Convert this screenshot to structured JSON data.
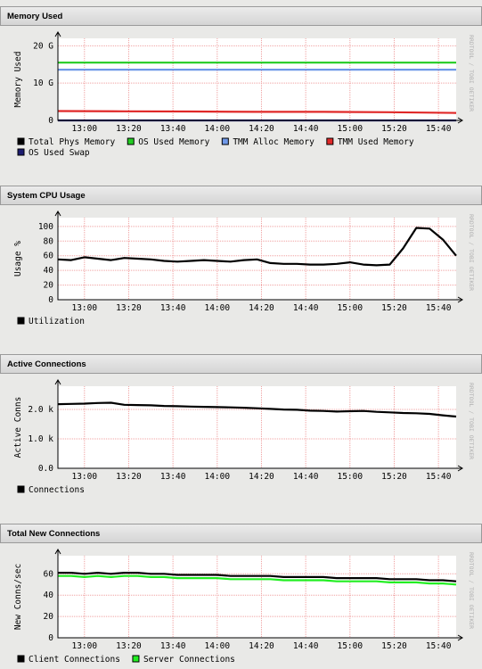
{
  "chart_data": [
    {
      "type": "line",
      "title": "Memory Used",
      "ylabel": "Memory Used",
      "watermark": "RRDTOOL / TOBI OETIKER",
      "x": [
        "12:48",
        "13:18",
        "13:48",
        "14:18",
        "14:48",
        "15:18",
        "15:48"
      ],
      "xlim": [
        "12:48",
        "15:48"
      ],
      "xticks": [
        "13:00",
        "13:20",
        "13:40",
        "14:00",
        "14:20",
        "14:40",
        "15:00",
        "15:20",
        "15:40"
      ],
      "ylim": [
        0,
        22000000000
      ],
      "yticks": [
        0,
        {
          "value": 10000000000,
          "label": "10 G"
        },
        {
          "value": 20000000000,
          "label": "20 G"
        }
      ],
      "grid": true,
      "series": [
        {
          "name": "Total Phys Memory",
          "color": "#000000",
          "values": [
            null,
            null,
            null,
            null,
            null,
            null,
            null
          ]
        },
        {
          "name": "OS Used Memory",
          "color": "#22cc22",
          "values": [
            15500000000,
            15500000000,
            15500000000,
            15500000000,
            15500000000,
            15500000000,
            15500000000
          ]
        },
        {
          "name": "TMM Alloc Memory",
          "color": "#6f98e8",
          "values": [
            13600000000,
            13600000000,
            13600000000,
            13600000000,
            13600000000,
            13600000000,
            13600000000
          ]
        },
        {
          "name": "TMM Used Memory",
          "color": "#e02828",
          "values": [
            2500000000,
            2450000000,
            2400000000,
            2300000000,
            2300000000,
            2200000000,
            2000000000
          ]
        },
        {
          "name": "OS Used Swap",
          "color": "#1c1c70",
          "values": [
            0,
            0,
            0,
            0,
            0,
            0,
            0
          ]
        }
      ]
    },
    {
      "type": "line",
      "title": "System CPU Usage",
      "ylabel": "Usage %",
      "watermark": "RRDTOOL / TOBI OETIKER",
      "x": [
        "12:48",
        "12:54",
        "13:00",
        "13:06",
        "13:12",
        "13:18",
        "13:24",
        "13:30",
        "13:36",
        "13:42",
        "13:48",
        "13:54",
        "14:00",
        "14:06",
        "14:12",
        "14:18",
        "14:24",
        "14:30",
        "14:36",
        "14:42",
        "14:48",
        "14:54",
        "15:00",
        "15:06",
        "15:12",
        "15:18",
        "15:24",
        "15:30",
        "15:36",
        "15:42",
        "15:48"
      ],
      "xlim": [
        "12:48",
        "15:48"
      ],
      "xticks": [
        "13:00",
        "13:20",
        "13:40",
        "14:00",
        "14:20",
        "14:40",
        "15:00",
        "15:20",
        "15:40"
      ],
      "ylim": [
        0,
        112
      ],
      "yticks": [
        0,
        20,
        40,
        60,
        80,
        100
      ],
      "grid": true,
      "series": [
        {
          "name": "Utilization",
          "color": "#000000",
          "values": [
            55,
            54,
            58,
            56,
            54,
            57,
            56,
            55,
            53,
            52,
            53,
            54,
            53,
            52,
            54,
            55,
            50,
            49,
            49,
            48,
            48,
            49,
            51,
            48,
            47,
            48,
            70,
            98,
            97,
            82,
            60
          ]
        }
      ]
    },
    {
      "type": "line",
      "title": "Active Connections",
      "ylabel": "Active Conns",
      "watermark": "RRDTOOL / TOBI OETIKER",
      "x": [
        "12:48",
        "12:54",
        "13:00",
        "13:06",
        "13:12",
        "13:18",
        "13:24",
        "13:30",
        "13:36",
        "13:42",
        "13:48",
        "13:54",
        "14:00",
        "14:06",
        "14:12",
        "14:18",
        "14:24",
        "14:30",
        "14:36",
        "14:42",
        "14:48",
        "14:54",
        "15:00",
        "15:06",
        "15:12",
        "15:18",
        "15:24",
        "15:30",
        "15:36",
        "15:42",
        "15:48"
      ],
      "xlim": [
        "12:48",
        "15:48"
      ],
      "xticks": [
        "13:00",
        "13:20",
        "13:40",
        "14:00",
        "14:20",
        "14:40",
        "15:00",
        "15:20",
        "15:40"
      ],
      "ylim": [
        0,
        2790
      ],
      "yticks": [
        {
          "value": 0,
          "label": "0.0"
        },
        {
          "value": 1000,
          "label": "1.0 k"
        },
        {
          "value": 2000,
          "label": "2.0 k"
        }
      ],
      "grid": true,
      "series": [
        {
          "name": "Connections",
          "color": "#000000",
          "values": [
            2180,
            2190,
            2200,
            2220,
            2230,
            2160,
            2150,
            2140,
            2120,
            2110,
            2100,
            2090,
            2080,
            2070,
            2060,
            2040,
            2020,
            2000,
            1990,
            1960,
            1950,
            1930,
            1940,
            1950,
            1920,
            1900,
            1880,
            1870,
            1850,
            1800,
            1760
          ]
        }
      ]
    },
    {
      "type": "line",
      "title": "Total New Connections",
      "ylabel": "New Conns/sec",
      "watermark": "RRDTOOL / TOBI OETIKER",
      "x": [
        "12:48",
        "12:54",
        "13:00",
        "13:06",
        "13:12",
        "13:18",
        "13:24",
        "13:30",
        "13:36",
        "13:42",
        "13:48",
        "13:54",
        "14:00",
        "14:06",
        "14:12",
        "14:18",
        "14:24",
        "14:30",
        "14:36",
        "14:42",
        "14:48",
        "14:54",
        "15:00",
        "15:06",
        "15:12",
        "15:18",
        "15:24",
        "15:30",
        "15:36",
        "15:42",
        "15:48"
      ],
      "xlim": [
        "12:48",
        "15:48"
      ],
      "xticks": [
        "13:00",
        "13:20",
        "13:40",
        "14:00",
        "14:20",
        "14:40",
        "15:00",
        "15:20",
        "15:40"
      ],
      "ylim": [
        0,
        77
      ],
      "yticks": [
        0,
        20,
        40,
        60
      ],
      "grid": true,
      "series": [
        {
          "name": "Client Connections",
          "color": "#000000",
          "values": [
            61,
            61,
            60,
            61,
            60,
            61,
            61,
            60,
            60,
            59,
            59,
            59,
            59,
            58,
            58,
            58,
            58,
            57,
            57,
            57,
            57,
            56,
            56,
            56,
            56,
            55,
            55,
            55,
            54,
            54,
            53
          ]
        },
        {
          "name": "Server Connections",
          "color": "#22ee22",
          "values": [
            58,
            58,
            57,
            58,
            57,
            58,
            58,
            57,
            57,
            56,
            56,
            56,
            56,
            55,
            55,
            55,
            55,
            54,
            54,
            54,
            54,
            53,
            53,
            53,
            53,
            52,
            52,
            52,
            51,
            51,
            50
          ]
        }
      ]
    }
  ]
}
